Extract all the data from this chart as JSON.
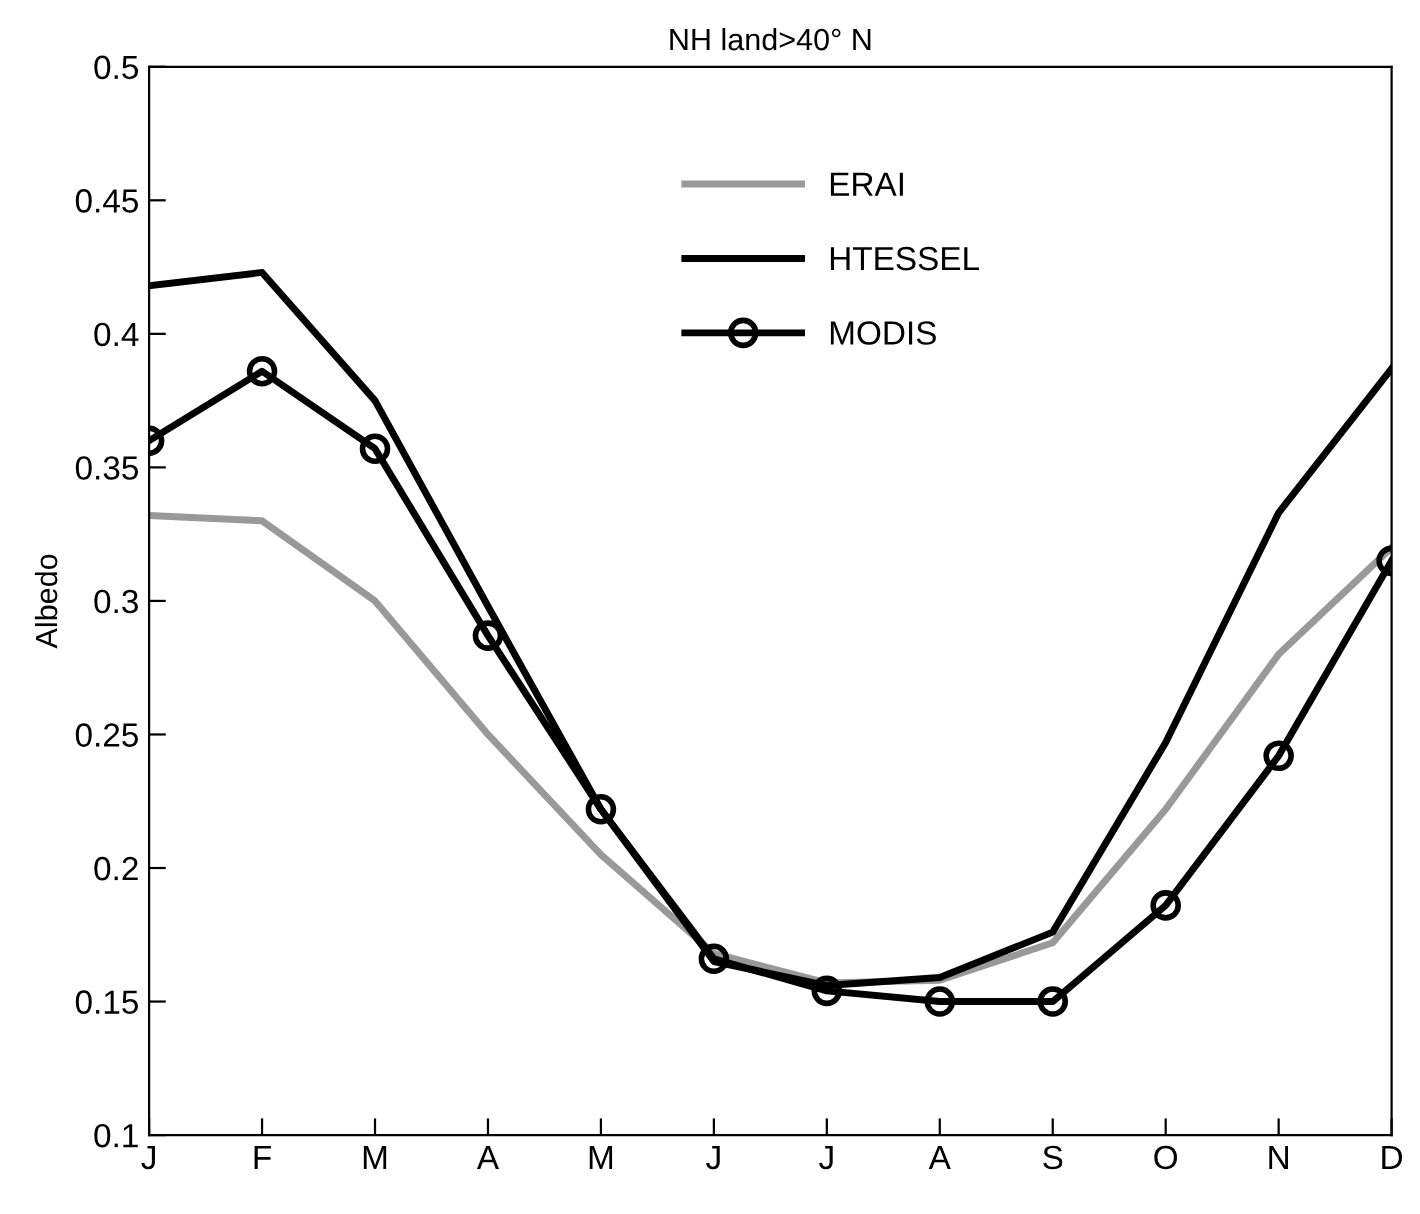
{
  "chart_data": {
    "type": "line",
    "title": "NH land>40° N",
    "ylabel": "Albedo",
    "categories": [
      "J",
      "F",
      "M",
      "A",
      "M",
      "J",
      "J",
      "A",
      "S",
      "O",
      "N",
      "D"
    ],
    "series": [
      {
        "name": "ERAI",
        "color": "#999999",
        "marker": "none",
        "values": [
          0.332,
          0.33,
          0.3,
          0.25,
          0.205,
          0.168,
          0.157,
          0.158,
          0.172,
          0.222,
          0.28,
          0.32
        ]
      },
      {
        "name": "HTESSEL",
        "color": "#000000",
        "marker": "none",
        "values": [
          0.418,
          0.423,
          0.375,
          0.298,
          0.222,
          0.165,
          0.156,
          0.159,
          0.176,
          0.247,
          0.333,
          0.387
        ]
      },
      {
        "name": "MODIS",
        "color": "#000000",
        "marker": "circle",
        "values": [
          0.36,
          0.386,
          0.357,
          0.287,
          0.222,
          0.166,
          0.154,
          0.15,
          0.15,
          0.186,
          0.242,
          0.315
        ]
      }
    ],
    "ylim": [
      0.1,
      0.5
    ],
    "yticks": [
      0.1,
      0.15,
      0.2,
      0.25,
      0.3,
      0.35,
      0.4,
      0.45,
      0.5
    ],
    "grid": false,
    "legend": "top",
    "line_style": "solid"
  }
}
